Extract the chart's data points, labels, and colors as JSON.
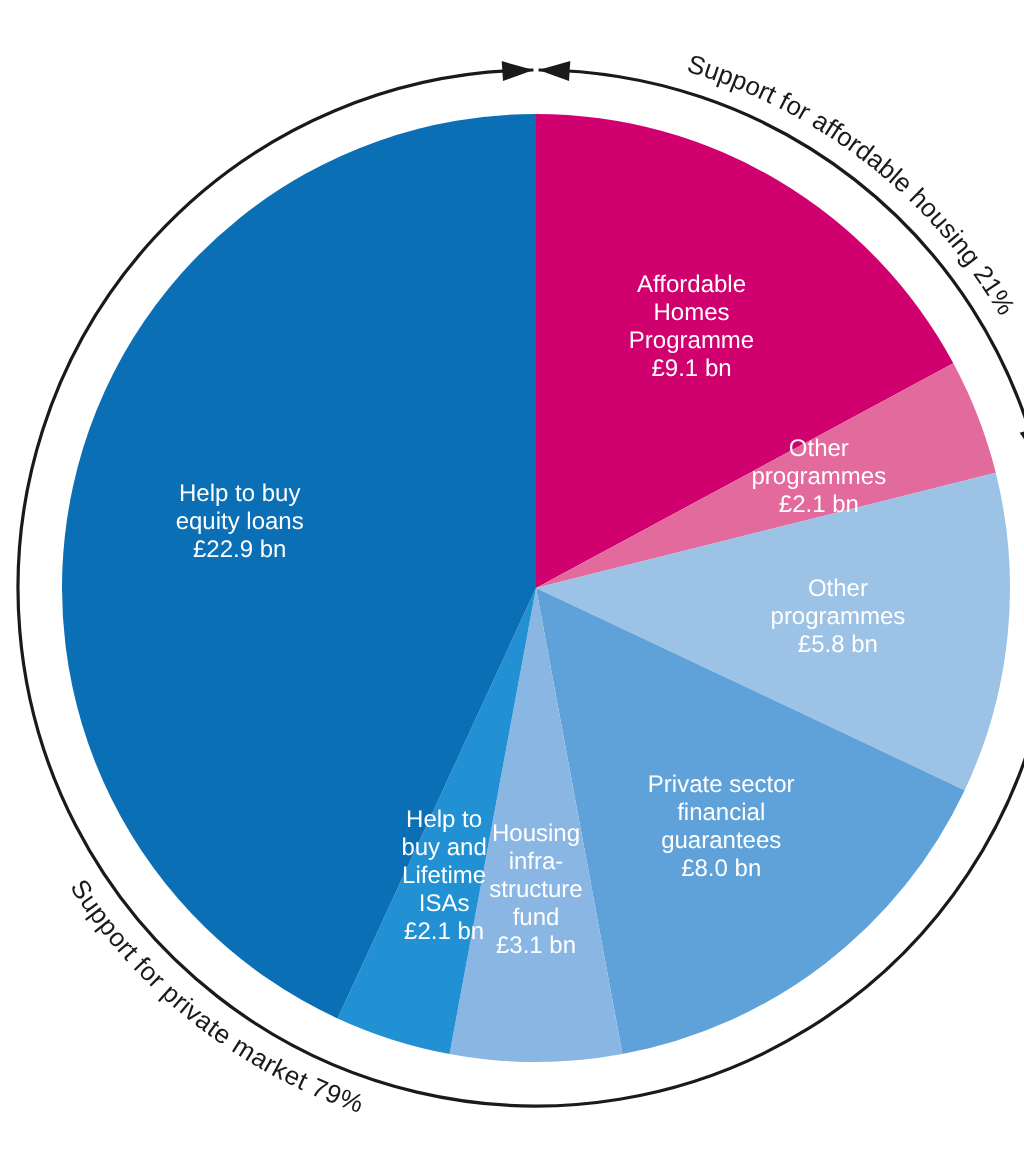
{
  "chart_data": {
    "type": "pie",
    "categories": [
      "Affordable\nHomes\nProgramme",
      "Other\nprogrammes",
      "Other\nprogrammes",
      "Private sector\nfinancial\nguarantees",
      "Housing\ninfra-\nstructure\nfund",
      "Help to\nbuy and\nLifetime\nISAs",
      "Help to buy\nequity loans"
    ],
    "values": [
      9.1,
      2.1,
      5.8,
      8.0,
      3.1,
      2.1,
      22.9
    ],
    "value_labels": [
      "£9.1 bn",
      "£2.1 bn",
      "£5.8 bn",
      "£8.0 bn",
      "£3.1 bn",
      "£2.1 bn",
      "£22.9 bn"
    ],
    "colors": [
      "#d1006f",
      "#e26a9c",
      "#9cc2e6",
      "#5fa1d9",
      "#8ab6e3",
      "#2191d4",
      "#0a6fb5"
    ],
    "annotations": [
      "Support for affordable housing 21%",
      "Support for private market 79%"
    ]
  }
}
